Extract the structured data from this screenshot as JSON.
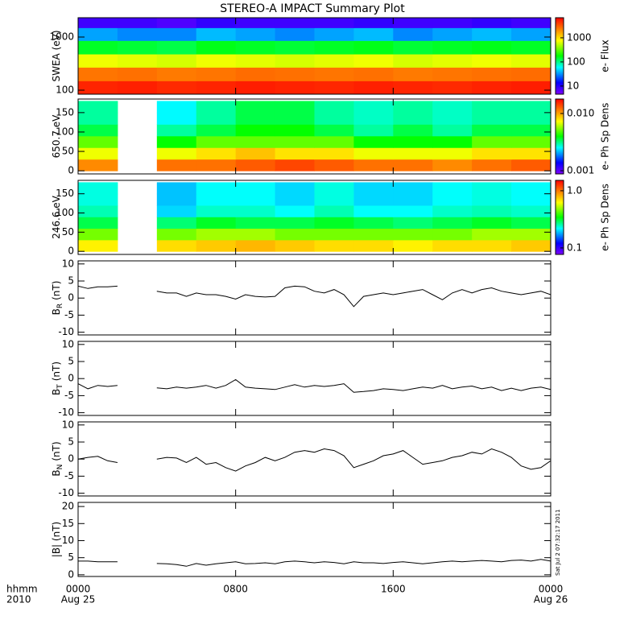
{
  "title": "STEREO-A IMPACT Summary Plot",
  "timestamp": "Sat Jul  2 07:32:17 2011",
  "x_axis": {
    "xlim": [
      0,
      24
    ],
    "xticks": [
      {
        "value": 0,
        "label": "0000"
      },
      {
        "value": 8,
        "label": "0800"
      },
      {
        "value": 16,
        "label": "1600"
      },
      {
        "value": 24,
        "label": "0000"
      }
    ],
    "date_labels": [
      {
        "value": 0,
        "label": "Aug 25"
      },
      {
        "value": 24,
        "label": "Aug 26"
      }
    ],
    "row_labels": [
      "hhmm",
      "2010"
    ]
  },
  "chart_data": [
    {
      "type": "heatmap",
      "ylabel": "SWEA (eV)",
      "ylog": true,
      "ylim": [
        84,
        2310
      ],
      "yticks": [
        100,
        1000
      ],
      "x_bins": [
        0,
        2,
        4,
        6,
        8,
        10,
        12,
        14,
        16,
        18,
        20,
        22,
        24
      ],
      "y_bins": [
        84,
        150,
        270,
        480,
        860,
        1500,
        2310
      ],
      "values": [
        [
          5000,
          5200,
          4800,
          5000,
          5300,
          5100,
          4900,
          5200,
          5000,
          4800,
          5100,
          5300
        ],
        [
          2500,
          2600,
          2400,
          2500,
          2700,
          2600,
          2500,
          2600,
          2400,
          2500,
          2600,
          2700
        ],
        [
          700,
          650,
          600,
          700,
          650,
          600,
          650,
          700,
          600,
          650,
          700,
          650
        ],
        [
          150,
          140,
          130,
          160,
          150,
          140,
          150,
          160,
          140,
          150,
          160,
          150
        ],
        [
          35,
          30,
          30,
          40,
          35,
          30,
          35,
          40,
          30,
          35,
          40,
          35
        ],
        [
          8,
          8,
          7,
          9,
          8,
          8,
          8,
          9,
          8,
          8,
          9,
          8
        ]
      ],
      "colormap": "rainbow",
      "clog": true,
      "clim": [
        4.6,
        6800
      ],
      "cticks": [
        10,
        100,
        1000
      ],
      "clabel": "e- Flux"
    },
    {
      "type": "heatmap",
      "ylabel": "650.7 eV",
      "ylog": false,
      "ylim": [
        -8,
        185
      ],
      "yticks": [
        0,
        50,
        100,
        150
      ],
      "x_bins": [
        0,
        2,
        4,
        6,
        8,
        10,
        12,
        14,
        16,
        18,
        20,
        22,
        24
      ],
      "y_bins": [
        0,
        30,
        60,
        90,
        120,
        150,
        180
      ],
      "values": [
        [
          0.011,
          null,
          0.012,
          0.012,
          0.013,
          0.014,
          0.013,
          0.012,
          0.012,
          0.011,
          0.012,
          0.013
        ],
        [
          0.007,
          null,
          0.007,
          0.008,
          0.009,
          0.008,
          0.008,
          0.007,
          0.007,
          0.007,
          0.008,
          0.008
        ],
        [
          0.005,
          null,
          0.004,
          0.005,
          0.005,
          0.005,
          0.005,
          0.004,
          0.004,
          0.004,
          0.005,
          0.005
        ],
        [
          0.0035,
          null,
          0.003,
          0.0035,
          0.004,
          0.004,
          0.0035,
          0.003,
          0.0035,
          0.003,
          0.0035,
          0.0035
        ],
        [
          0.003,
          null,
          0.0025,
          0.003,
          0.0035,
          0.0035,
          0.003,
          0.0028,
          0.003,
          0.0028,
          0.003,
          0.003
        ],
        [
          0.003,
          null,
          0.0025,
          0.003,
          0.0035,
          0.0035,
          0.003,
          0.0028,
          0.003,
          0.0028,
          0.003,
          0.003
        ]
      ],
      "colormap": "rainbow",
      "clog": true,
      "clim": [
        0.00088,
        0.0179
      ],
      "cticks": [
        0.001,
        {
          "value": 0.01,
          "label": "0.010"
        }
      ],
      "clabel": "e- Ph Sp Dens"
    },
    {
      "type": "heatmap",
      "ylabel": "246.6 eV",
      "ylog": false,
      "ylim": [
        -8,
        185
      ],
      "yticks": [
        0,
        50,
        100,
        150
      ],
      "x_bins": [
        0,
        2,
        4,
        6,
        8,
        10,
        12,
        14,
        16,
        18,
        20,
        22,
        24
      ],
      "y_bins": [
        0,
        30,
        60,
        90,
        120,
        150,
        180
      ],
      "values": [
        [
          0.65,
          null,
          0.7,
          0.75,
          0.8,
          0.75,
          0.7,
          0.7,
          0.65,
          0.7,
          0.7,
          0.75
        ],
        [
          0.45,
          null,
          0.45,
          0.5,
          0.5,
          0.45,
          0.45,
          0.45,
          0.45,
          0.45,
          0.5,
          0.5
        ],
        [
          0.3,
          null,
          0.28,
          0.32,
          0.3,
          0.3,
          0.32,
          0.3,
          0.28,
          0.3,
          0.32,
          0.3
        ],
        [
          0.25,
          null,
          0.2,
          0.24,
          0.24,
          0.22,
          0.25,
          0.22,
          0.22,
          0.24,
          0.25,
          0.24
        ],
        [
          0.23,
          null,
          0.19,
          0.22,
          0.22,
          0.2,
          0.23,
          0.2,
          0.2,
          0.22,
          0.23,
          0.22
        ],
        [
          0.23,
          null,
          0.19,
          0.22,
          0.22,
          0.2,
          0.23,
          0.2,
          0.2,
          0.22,
          0.23,
          0.22
        ]
      ],
      "colormap": "rainbow",
      "clog": true,
      "clim": [
        0.077,
        1.52
      ],
      "cticks": [
        {
          "value": 1,
          "label": "1.0"
        },
        0.1
      ],
      "clabel": "e- Ph Sp Dens"
    },
    {
      "type": "line",
      "ylabel": "B",
      "ylabel_sub": "R",
      "ylabel_unit": "(nT)",
      "color": "#000000",
      "ylim": [
        -10.8,
        10.9
      ],
      "yticks": [
        -10,
        -5,
        0,
        5,
        10
      ],
      "x": [
        0,
        0.5,
        1,
        1.5,
        2,
        2.5,
        3,
        3.5,
        4,
        4.5,
        5,
        5.5,
        6,
        6.5,
        7,
        7.5,
        8,
        8.5,
        9,
        9.5,
        10,
        10.5,
        11,
        11.5,
        12,
        12.5,
        13,
        13.5,
        14,
        14.5,
        15,
        15.5,
        16,
        16.5,
        17,
        17.5,
        18,
        18.5,
        19,
        19.5,
        20,
        20.5,
        21,
        21.5,
        22,
        22.5,
        23,
        23.5,
        24
      ],
      "values": [
        3.5,
        2.8,
        3.3,
        3.3,
        3.5,
        null,
        null,
        null,
        2.0,
        1.5,
        1.5,
        0.5,
        1.5,
        1.0,
        1.0,
        0.5,
        -0.3,
        1.0,
        0.5,
        0.3,
        0.5,
        3.0,
        3.5,
        3.3,
        2.0,
        1.5,
        2.5,
        1.0,
        -2.5,
        0.5,
        1.0,
        1.5,
        1.0,
        1.5,
        2.0,
        2.5,
        1.0,
        -0.5,
        1.5,
        2.5,
        1.5,
        2.5,
        3.0,
        2.0,
        1.5,
        1.0,
        1.5,
        2.0,
        1.0
      ]
    },
    {
      "type": "line",
      "ylabel": "B",
      "ylabel_sub": "T",
      "ylabel_unit": "(nT)",
      "color": "#000000",
      "ylim": [
        -10.8,
        10.9
      ],
      "yticks": [
        -10,
        -5,
        0,
        5,
        10
      ],
      "x": [
        0,
        0.5,
        1,
        1.5,
        2,
        2.5,
        3,
        3.5,
        4,
        4.5,
        5,
        5.5,
        6,
        6.5,
        7,
        7.5,
        8,
        8.5,
        9,
        9.5,
        10,
        10.5,
        11,
        11.5,
        12,
        12.5,
        13,
        13.5,
        14,
        14.5,
        15,
        15.5,
        16,
        16.5,
        17,
        17.5,
        18,
        18.5,
        19,
        19.5,
        20,
        20.5,
        21,
        21.5,
        22,
        22.5,
        23,
        23.5,
        24
      ],
      "values": [
        -1.5,
        -3,
        -2,
        -2.3,
        -2,
        null,
        null,
        null,
        -2.7,
        -3,
        -2.5,
        -2.8,
        -2.5,
        -2,
        -2.8,
        -2,
        -0.3,
        -2.5,
        -2.8,
        -3,
        -3.2,
        -2.5,
        -1.8,
        -2.5,
        -2,
        -2.3,
        -2,
        -1.5,
        -4,
        -3.8,
        -3.5,
        -3,
        -3.2,
        -3.5,
        -3,
        -2.5,
        -2.8,
        -2,
        -3,
        -2.5,
        -2.2,
        -3,
        -2.5,
        -3.5,
        -2.8,
        -3.5,
        -2.8,
        -2.5,
        -3.2
      ]
    },
    {
      "type": "line",
      "ylabel": "B",
      "ylabel_sub": "N",
      "ylabel_unit": "(nT)",
      "color": "#000000",
      "ylim": [
        -10.8,
        10.9
      ],
      "yticks": [
        -10,
        -5,
        0,
        5,
        10
      ],
      "x": [
        0,
        0.5,
        1,
        1.5,
        2,
        2.5,
        3,
        3.5,
        4,
        4.5,
        5,
        5.5,
        6,
        6.5,
        7,
        7.5,
        8,
        8.5,
        9,
        9.5,
        10,
        10.5,
        11,
        11.5,
        12,
        12.5,
        13,
        13.5,
        14,
        14.5,
        15,
        15.5,
        16,
        16.5,
        17,
        17.5,
        18,
        18.5,
        19,
        19.5,
        20,
        20.5,
        21,
        21.5,
        22,
        22.5,
        23,
        23.5,
        24
      ],
      "values": [
        0,
        0.5,
        0.8,
        -0.5,
        -1,
        null,
        null,
        null,
        0,
        0.5,
        0.3,
        -1,
        0.5,
        -1.5,
        -1,
        -2.5,
        -3.5,
        -2,
        -1,
        0.5,
        -0.5,
        0.5,
        2,
        2.5,
        2,
        3,
        2.5,
        1,
        -2.5,
        -1.5,
        -0.5,
        1,
        1.5,
        2.5,
        0.5,
        -1.5,
        -1,
        -0.5,
        0.5,
        1,
        2,
        1.5,
        3,
        2,
        0.5,
        -2,
        -3,
        -2.5,
        -0.5
      ]
    },
    {
      "type": "line",
      "ylabel": "|B| (nT)",
      "color": "#000000",
      "ylim": [
        -0.5,
        21.2
      ],
      "yticks": [
        0,
        5,
        10,
        15,
        20
      ],
      "x": [
        0,
        0.5,
        1,
        1.5,
        2,
        2.5,
        3,
        3.5,
        4,
        4.5,
        5,
        5.5,
        6,
        6.5,
        7,
        7.5,
        8,
        8.5,
        9,
        9.5,
        10,
        10.5,
        11,
        11.5,
        12,
        12.5,
        13,
        13.5,
        14,
        14.5,
        15,
        15.5,
        16,
        16.5,
        17,
        17.5,
        18,
        18.5,
        19,
        19.5,
        20,
        20.5,
        21,
        21.5,
        22,
        22.5,
        23,
        23.5,
        24
      ],
      "values": [
        4,
        4,
        3.8,
        3.8,
        3.8,
        null,
        null,
        null,
        3.3,
        3.2,
        3,
        2.5,
        3.3,
        2.8,
        3.2,
        3.5,
        3.8,
        3.2,
        3.3,
        3.5,
        3.2,
        3.8,
        4,
        3.8,
        3.5,
        3.8,
        3.6,
        3.2,
        3.8,
        3.5,
        3.5,
        3.3,
        3.6,
        3.8,
        3.5,
        3.2,
        3.5,
        3.8,
        4,
        3.8,
        4,
        4.2,
        4,
        3.8,
        4.2,
        4.3,
        4,
        4.5,
        4
      ]
    }
  ]
}
